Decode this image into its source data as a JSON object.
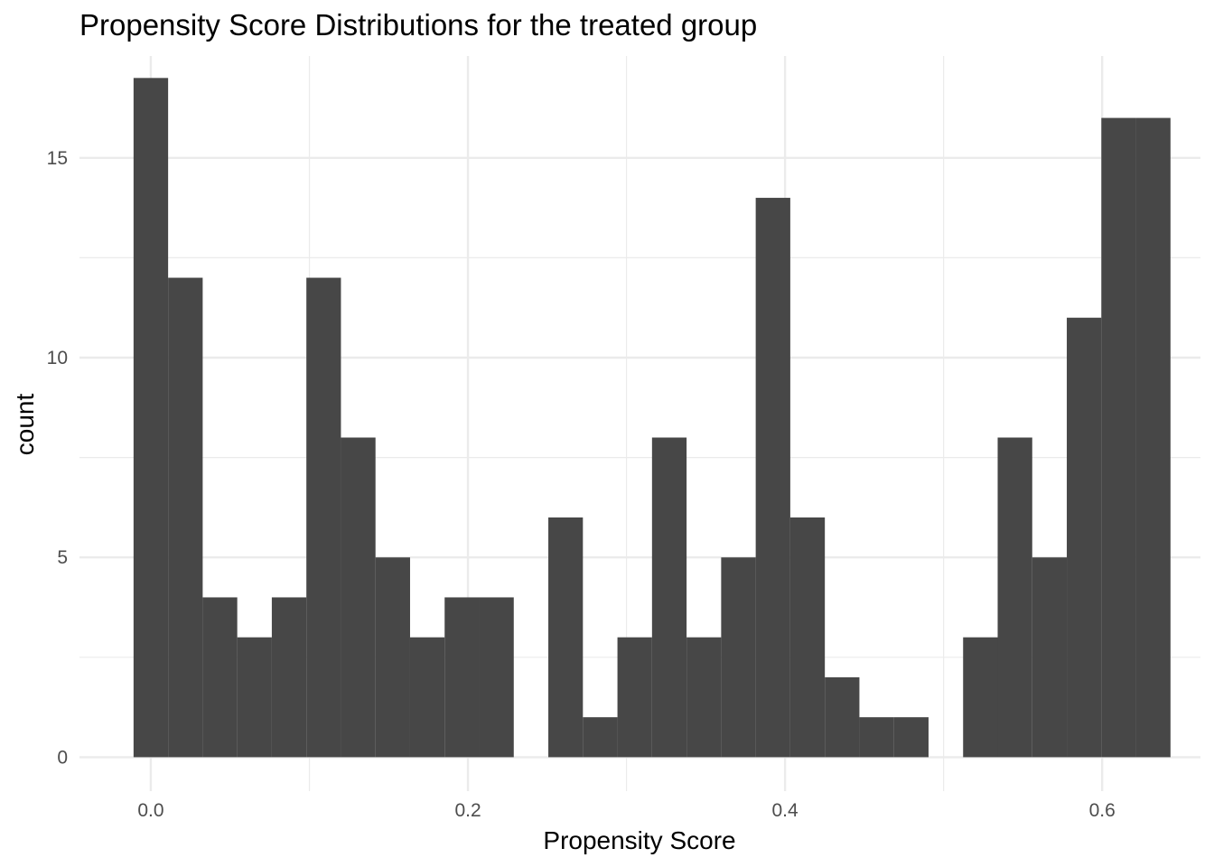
{
  "chart_data": {
    "type": "bar",
    "title": "Propensity Score Distributions for the treated group",
    "xlabel": "Propensity Score",
    "ylabel": "count",
    "xlim": [
      -0.045,
      0.662
    ],
    "ylim": [
      -0.85,
      17.55
    ],
    "x_ticks": [
      0.0,
      0.2,
      0.4,
      0.6
    ],
    "x_tick_labels": [
      "0.0",
      "0.2",
      "0.4",
      "0.6"
    ],
    "x_minor_ticks": [
      0.1,
      0.3,
      0.5
    ],
    "y_ticks": [
      0,
      5,
      10,
      15
    ],
    "y_tick_labels": [
      "0",
      "5",
      "10",
      "15"
    ],
    "y_minor_ticks": [
      2.5,
      7.5,
      12.5
    ],
    "grid": true,
    "bar_color": "#474747",
    "bin_width": 0.0218,
    "bin_centers": [
      0.0,
      0.0218,
      0.0436,
      0.0654,
      0.0872,
      0.109,
      0.1308,
      0.1526,
      0.1744,
      0.1962,
      0.218,
      0.2398,
      0.2616,
      0.2834,
      0.3052,
      0.327,
      0.3488,
      0.3706,
      0.3924,
      0.4142,
      0.436,
      0.4578,
      0.4796,
      0.5014,
      0.5232,
      0.545,
      0.5668,
      0.5886,
      0.6104,
      0.6322
    ],
    "values": [
      17,
      12,
      4,
      3,
      4,
      12,
      8,
      5,
      3,
      4,
      4,
      0,
      6,
      1,
      3,
      8,
      3,
      5,
      14,
      6,
      2,
      1,
      1,
      0,
      3,
      8,
      5,
      11,
      16,
      16
    ]
  }
}
